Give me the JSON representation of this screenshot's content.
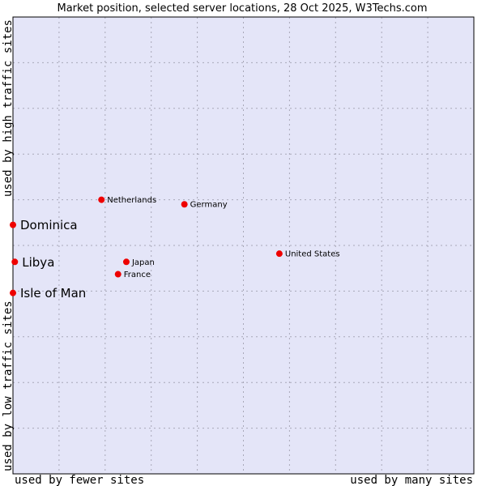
{
  "chart_data": {
    "type": "scatter",
    "title": "Market position, selected server locations, 28 Oct 2025, W3Techs.com",
    "xlabel_low": "used by fewer sites",
    "xlabel_high": "used by many sites",
    "ylabel_low": "used by low traffic sites",
    "ylabel_high": "used by high traffic sites",
    "xlim": [
      0,
      10
    ],
    "ylim": [
      0,
      10
    ],
    "grid": true,
    "colors": {
      "plot_bg": "#e4e5f8",
      "grid": "#a8a8b8",
      "border": "#000000",
      "point": "#ee0000"
    },
    "points": [
      {
        "name": "Netherlands",
        "x": 1.92,
        "y": 6.0,
        "emphasis": false
      },
      {
        "name": "Germany",
        "x": 3.72,
        "y": 5.9,
        "emphasis": false
      },
      {
        "name": "Dominica",
        "x": 0.0,
        "y": 5.45,
        "emphasis": true
      },
      {
        "name": "United States",
        "x": 5.78,
        "y": 4.82,
        "emphasis": false
      },
      {
        "name": "Libya",
        "x": 0.04,
        "y": 4.64,
        "emphasis": true
      },
      {
        "name": "Japan",
        "x": 2.46,
        "y": 4.64,
        "emphasis": false
      },
      {
        "name": "France",
        "x": 2.28,
        "y": 4.37,
        "emphasis": false
      },
      {
        "name": "Isle of Man",
        "x": 0.0,
        "y": 3.96,
        "emphasis": true
      }
    ]
  }
}
